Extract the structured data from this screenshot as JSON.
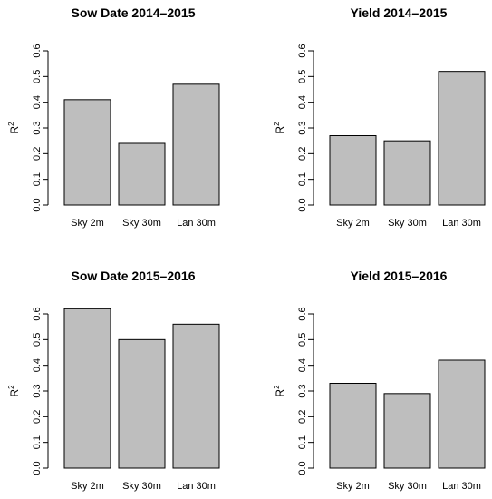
{
  "chart_data": [
    {
      "type": "bar",
      "title": "Sow Date 2014–2015",
      "ylabel": "R",
      "ylabel_superscript": "2",
      "categories": [
        "Sky 2m",
        "Sky 30m",
        "Lan 30m"
      ],
      "values": [
        0.41,
        0.24,
        0.47
      ],
      "ylim": [
        0,
        0.6
      ],
      "yticks": [
        "0.0",
        "0.1",
        "0.2",
        "0.3",
        "0.4",
        "0.5",
        "0.6"
      ],
      "bar_color": "#bebebe",
      "grid": false
    },
    {
      "type": "bar",
      "title": "Yield 2014–2015",
      "ylabel": "R",
      "ylabel_superscript": "2",
      "categories": [
        "Sky 2m",
        "Sky 30m",
        "Lan 30m"
      ],
      "values": [
        0.27,
        0.25,
        0.52
      ],
      "ylim": [
        0,
        0.6
      ],
      "yticks": [
        "0.0",
        "0.1",
        "0.2",
        "0.3",
        "0.4",
        "0.5",
        "0.6"
      ],
      "bar_color": "#bebebe",
      "grid": false
    },
    {
      "type": "bar",
      "title": "Sow Date 2015–2016",
      "ylabel": "R",
      "ylabel_superscript": "2",
      "categories": [
        "Sky 2m",
        "Sky 30m",
        "Lan 30m"
      ],
      "values": [
        0.62,
        0.5,
        0.56
      ],
      "ylim": [
        0,
        0.6
      ],
      "yticks": [
        "0.0",
        "0.1",
        "0.2",
        "0.3",
        "0.4",
        "0.5",
        "0.6"
      ],
      "bar_color": "#bebebe",
      "grid": false
    },
    {
      "type": "bar",
      "title": "Yield 2015–2016",
      "ylabel": "R",
      "ylabel_superscript": "2",
      "categories": [
        "Sky 2m",
        "Sky 30m",
        "Lan 30m"
      ],
      "values": [
        0.33,
        0.29,
        0.42
      ],
      "ylim": [
        0,
        0.6
      ],
      "yticks": [
        "0.0",
        "0.1",
        "0.2",
        "0.3",
        "0.4",
        "0.5",
        "0.6"
      ],
      "bar_color": "#bebebe",
      "grid": false
    }
  ]
}
